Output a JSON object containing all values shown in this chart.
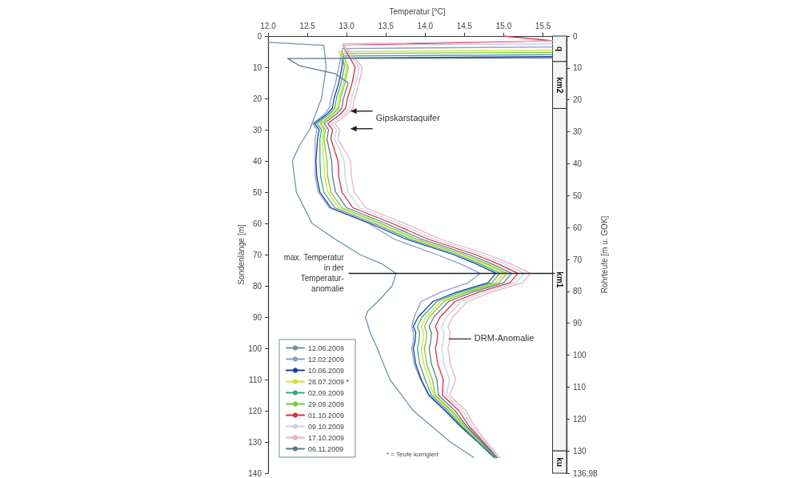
{
  "chart_data": {
    "type": "line",
    "xlabel": "Temperatur [°C]",
    "ylabel": "Sondenlänge [m]",
    "y2label": "Rohrteufe [m u. GOK]",
    "xlim": [
      12.0,
      15.8
    ],
    "xticks": [
      {
        "value": 12,
        "label": "12.0"
      },
      12.5,
      {
        "value": 13,
        "label": "13.0"
      },
      13.5,
      {
        "value": 14,
        "label": "14.0"
      },
      14.5,
      {
        "value": 15,
        "label": "15.0"
      },
      15.5
    ],
    "ylim": [
      140,
      0
    ],
    "yticks": [
      0,
      10,
      20,
      30,
      40,
      50,
      60,
      70,
      80,
      90,
      100,
      110,
      120,
      130,
      140
    ],
    "y2lim": [
      136.98,
      0
    ],
    "y2ticks": [
      0,
      10,
      20,
      30,
      40,
      50,
      60,
      70,
      80,
      90,
      100,
      110,
      120,
      130,
      {
        "value": 136.98,
        "label": "136,98"
      }
    ],
    "marker": "none",
    "legend": "bottom left",
    "series": [
      {
        "name": "12.06.2009",
        "color": "#6f93a8",
        "x": [
          12.0,
          12.71,
          12.74,
          12.68,
          12.53,
          12.4,
          12.31,
          12.36,
          12.56,
          12.85,
          13.17,
          13.45,
          13.63,
          13.58,
          13.4,
          13.27,
          13.24,
          13.3,
          13.39,
          13.55,
          13.85,
          14.32,
          14.62
        ],
        "values": [
          2,
          3,
          10,
          20,
          30,
          35,
          40,
          50,
          60,
          65,
          70,
          73,
          76,
          80,
          85,
          88,
          90,
          95,
          100,
          110,
          120,
          130,
          135
        ]
      },
      {
        "name": "12.02.2009",
        "color": "#8a9ccc",
        "x": [
          15.62,
          12.95,
          12.9,
          12.86,
          12.8,
          12.78,
          12.72,
          12.57,
          12.62,
          12.6,
          12.6,
          12.6,
          12.64,
          12.78,
          13.28,
          13.6,
          14.15,
          14.45,
          14.7,
          14.55,
          14.2,
          13.95,
          13.86,
          13.83,
          13.85,
          13.85,
          13.83,
          13.86,
          13.94,
          14.04,
          14.25,
          14.45,
          14.67,
          14.88
        ],
        "values": [
          3.5,
          4,
          10,
          15,
          20,
          23,
          25,
          28,
          30,
          33,
          40,
          45,
          50,
          55,
          60,
          65,
          70,
          73,
          76,
          79,
          82,
          85,
          90,
          93,
          95,
          98,
          100,
          105,
          110,
          115,
          120,
          125,
          130,
          135
        ]
      },
      {
        "name": "10.06.2009",
        "color": "#1f3f9f",
        "x": [
          15.62,
          12.95,
          12.94,
          12.9,
          12.84,
          12.82,
          12.75,
          12.59,
          12.65,
          12.63,
          12.61,
          12.62,
          12.66,
          12.8,
          13.3,
          13.75,
          14.36,
          14.65,
          14.9,
          14.8,
          14.4,
          14.1,
          13.91,
          13.85,
          13.88,
          13.87,
          13.85,
          13.88,
          13.95,
          14.05,
          14.26,
          14.45,
          14.67,
          14.88
        ],
        "values": [
          6.6,
          7,
          10,
          15,
          20,
          23,
          25,
          28,
          30,
          33,
          40,
          45,
          50,
          55,
          60,
          65,
          70,
          73,
          76,
          79,
          82,
          85,
          90,
          93,
          95,
          98,
          100,
          105,
          110,
          115,
          120,
          125,
          130,
          135
        ]
      },
      {
        "name": "28.07.2009 *",
        "color": "#d4e030",
        "x": [
          15.62,
          12.9,
          13.0,
          12.96,
          12.9,
          12.88,
          12.81,
          12.65,
          12.71,
          12.69,
          12.71,
          12.72,
          12.76,
          12.9,
          13.4,
          13.85,
          14.46,
          14.75,
          15.0,
          14.9,
          14.5,
          14.2,
          14.01,
          13.95,
          13.98,
          13.97,
          13.95,
          13.98,
          14.05,
          14.11,
          14.32,
          14.49,
          14.7,
          14.9
        ],
        "values": [
          4.5,
          5,
          10,
          15,
          20,
          23,
          25,
          28,
          30,
          33,
          40,
          45,
          50,
          55,
          60,
          65,
          70,
          73,
          76,
          79,
          82,
          85,
          90,
          93,
          95,
          98,
          100,
          105,
          110,
          115,
          120,
          125,
          130,
          135
        ]
      },
      {
        "name": "02.09.2009",
        "color": "#3aa88a",
        "x": [
          15.62,
          12.95,
          12.97,
          12.93,
          12.87,
          12.85,
          12.78,
          12.62,
          12.68,
          12.66,
          12.66,
          12.67,
          12.71,
          12.85,
          13.35,
          13.8,
          14.41,
          14.7,
          14.95,
          14.85,
          14.45,
          14.15,
          13.96,
          13.9,
          13.93,
          13.92,
          13.9,
          13.93,
          14.0,
          14.08,
          14.29,
          14.47,
          14.68,
          14.89
        ],
        "values": [
          6.0,
          6.4,
          10,
          15,
          20,
          23,
          25,
          28,
          30,
          33,
          40,
          45,
          50,
          55,
          60,
          65,
          70,
          73,
          76,
          79,
          82,
          85,
          90,
          93,
          95,
          98,
          100,
          105,
          110,
          115,
          120,
          125,
          130,
          135
        ]
      },
      {
        "name": "29.09.2009",
        "color": "#7cc840",
        "x": [
          15.62,
          12.95,
          13.02,
          12.98,
          12.92,
          12.9,
          12.83,
          12.67,
          12.73,
          12.71,
          12.75,
          12.76,
          12.8,
          12.94,
          13.44,
          13.89,
          14.5,
          14.79,
          15.04,
          14.94,
          14.54,
          14.24,
          14.05,
          13.99,
          14.02,
          14.01,
          13.99,
          14.02,
          14.09,
          14.13,
          14.34,
          14.51,
          14.71,
          14.9
        ],
        "values": [
          5.2,
          5.6,
          10,
          15,
          20,
          23,
          25,
          28,
          30,
          33,
          40,
          45,
          50,
          55,
          60,
          65,
          70,
          73,
          76,
          79,
          82,
          85,
          90,
          93,
          95,
          98,
          100,
          105,
          110,
          115,
          120,
          125,
          130,
          135
        ]
      },
      {
        "name": "01.10.2009",
        "color": "#d83040",
        "x": [
          15.0,
          15.62,
          12.95,
          13.11,
          13.07,
          13.01,
          12.99,
          12.92,
          12.76,
          12.82,
          12.8,
          12.89,
          12.9,
          12.94,
          13.08,
          13.58,
          14.03,
          14.64,
          14.93,
          15.18,
          15.08,
          14.68,
          14.38,
          14.19,
          14.13,
          14.16,
          14.15,
          14.13,
          14.16,
          14.23,
          14.22,
          14.43,
          14.56,
          14.74,
          14.92
        ],
        "values": [
          0,
          1.5,
          3,
          10,
          15,
          20,
          23,
          25,
          28,
          30,
          33,
          40,
          45,
          50,
          55,
          60,
          65,
          70,
          73,
          76,
          79,
          82,
          85,
          90,
          93,
          95,
          98,
          100,
          105,
          110,
          115,
          120,
          125,
          130,
          135
        ]
      },
      {
        "name": "09.10.2009",
        "color": "#c8d0e8",
        "x": [
          15.62,
          12.95,
          13.16,
          13.12,
          13.06,
          13.04,
          12.97,
          12.81,
          12.87,
          12.85,
          12.97,
          12.98,
          13.02,
          13.16,
          13.66,
          14.11,
          14.72,
          15.01,
          15.26,
          15.16,
          14.76,
          14.46,
          14.27,
          14.21,
          14.24,
          14.23,
          14.21,
          14.24,
          14.31,
          14.27,
          14.48,
          14.59,
          14.76,
          14.93
        ],
        "values": [
          2.5,
          3,
          10,
          15,
          20,
          23,
          25,
          28,
          30,
          33,
          40,
          45,
          50,
          55,
          60,
          65,
          70,
          73,
          76,
          79,
          82,
          85,
          90,
          93,
          95,
          98,
          100,
          105,
          110,
          115,
          120,
          125,
          130,
          135
        ]
      },
      {
        "name": "17.10.2009",
        "color": "#e8b0c8",
        "x": [
          15.62,
          12.95,
          13.2,
          13.16,
          13.1,
          13.08,
          13.01,
          12.85,
          12.91,
          12.89,
          13.05,
          13.06,
          13.1,
          13.24,
          13.74,
          14.19,
          14.8,
          15.09,
          15.34,
          15.24,
          14.84,
          14.54,
          14.35,
          14.29,
          14.32,
          14.31,
          14.29,
          14.32,
          14.39,
          14.31,
          14.52,
          14.63,
          14.78,
          14.95
        ],
        "values": [
          1.5,
          2.5,
          10,
          15,
          20,
          23,
          25,
          28,
          30,
          33,
          40,
          45,
          50,
          55,
          60,
          65,
          70,
          73,
          76,
          79,
          82,
          85,
          90,
          93,
          95,
          98,
          100,
          105,
          110,
          115,
          120,
          125,
          130,
          135
        ]
      },
      {
        "name": "06.11.2009",
        "color": "#5f7a8e",
        "x": [
          15.62,
          12.25,
          12.4,
          12.85,
          13.02,
          12.96,
          12.94,
          12.87,
          12.71,
          12.77,
          12.75,
          12.81,
          12.82,
          12.86,
          13.0,
          13.5,
          13.95,
          14.56,
          14.85,
          15.1,
          15.0,
          14.6,
          14.3,
          14.11,
          14.05,
          14.08,
          14.07,
          14.05,
          14.08,
          14.15,
          14.17,
          14.38,
          14.53,
          14.72,
          14.91
        ],
        "values": [
          7.0,
          7.2,
          9.5,
          12,
          15,
          20,
          23,
          25,
          28,
          30,
          33,
          40,
          45,
          50,
          55,
          60,
          65,
          70,
          73,
          76,
          79,
          82,
          85,
          90,
          93,
          95,
          98,
          100,
          105,
          110,
          115,
          120,
          125,
          130,
          135
        ]
      }
    ],
    "ref_lines": [
      {
        "axis": "y",
        "value": 76,
        "label": "max. Temperatur in der Temperatur-anomalie",
        "color": "#222222"
      }
    ],
    "bands": [
      {
        "axis": "y2",
        "from": 0,
        "to": 8,
        "label": "q",
        "color": "#f4f4f4"
      },
      {
        "axis": "y2",
        "from": 8,
        "to": 22.7,
        "label": "km2",
        "color": "#f4f4f4"
      },
      {
        "axis": "y2",
        "from": 22.7,
        "to": 130,
        "label": "km1",
        "color": "#f4f4f4"
      },
      {
        "axis": "y2",
        "from": 130,
        "to": 136.98,
        "label": "ku",
        "color": "#f4f4f4"
      }
    ],
    "annotations": [
      "Gipskarstaquifer",
      {
        "text": "DRM-Anomalie",
        "x": 14.28,
        "y": 97
      },
      "* = Teufe korrigiert"
    ]
  }
}
